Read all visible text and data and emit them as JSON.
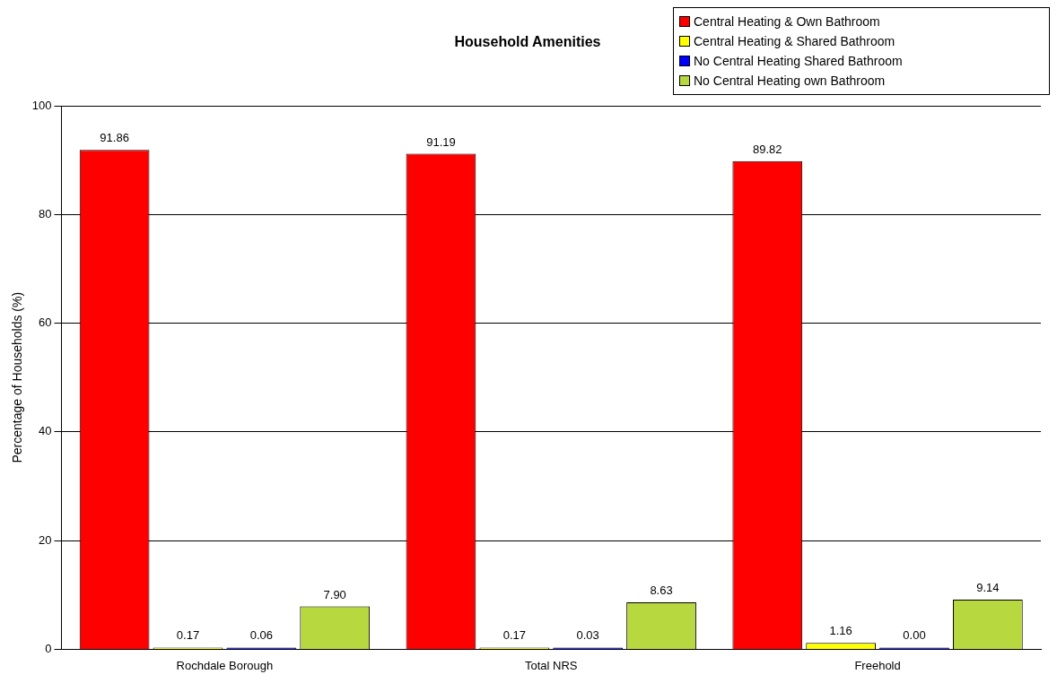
{
  "chart_data": {
    "type": "bar",
    "title": "Household Amenities",
    "ylabel": "Percentage of Households (%)",
    "categories": [
      "Rochdale Borough",
      "Total NRS",
      "Freehold"
    ],
    "series": [
      {
        "name": "Central Heating & Own Bathroom",
        "color": "#ff0000",
        "values": [
          91.86,
          91.19,
          89.82
        ],
        "value_labels": [
          "91.86",
          "91.19",
          "89.82"
        ]
      },
      {
        "name": "Central Heating & Shared Bathroom",
        "color": "#ffff00",
        "values": [
          0.17,
          0.17,
          1.16
        ],
        "value_labels": [
          "0.17",
          "0.17",
          "1.16"
        ]
      },
      {
        "name": "No Central Heating Shared Bathroom",
        "color": "#0000ff",
        "values": [
          0.06,
          0.03,
          0
        ],
        "value_labels": [
          "0.06",
          "0.03",
          "0.00"
        ]
      },
      {
        "name": "No Central Heating own Bathroom",
        "color": "#b8d840",
        "values": [
          7.9,
          8.63,
          9.14
        ],
        "value_labels": [
          "7.90",
          "8.63",
          "9.14"
        ]
      }
    ],
    "ylim": [
      0,
      100
    ],
    "yticks": [
      0,
      20,
      40,
      60,
      80,
      100
    ],
    "grid": "y",
    "legend": "top right"
  }
}
